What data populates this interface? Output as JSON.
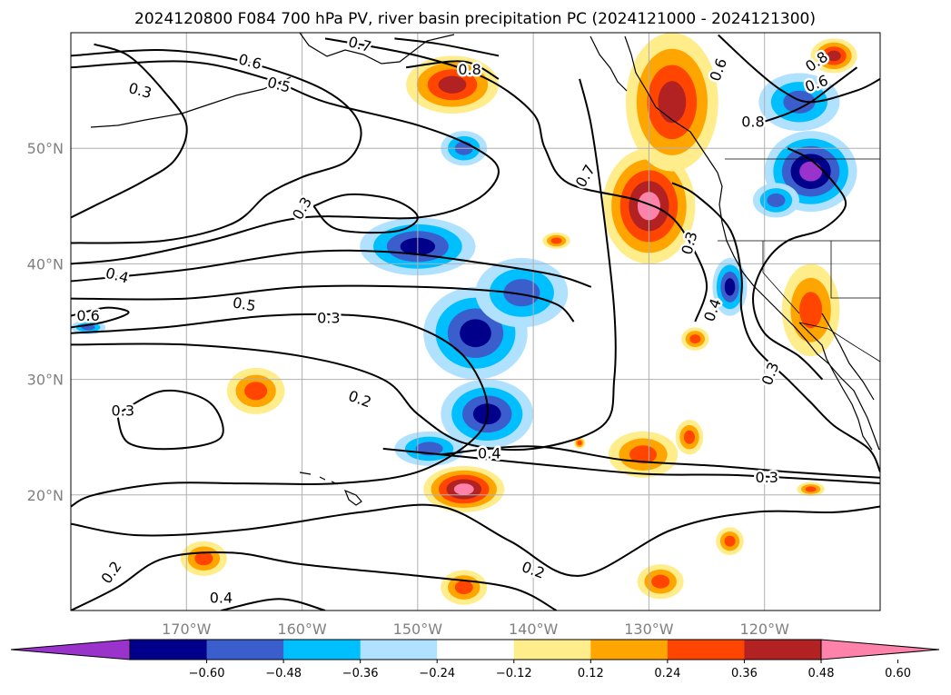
{
  "chart_data": {
    "type": "contour_map",
    "title": "2024120800 F084 700 hPa PV, river basin precipitation PC (2024121000 - 2024121300)",
    "xlim": [
      -180,
      -110
    ],
    "ylim": [
      10,
      60
    ],
    "grid": true,
    "x_ticks": [
      {
        "value": -170,
        "label": "170°W"
      },
      {
        "value": -160,
        "label": "160°W"
      },
      {
        "value": -150,
        "label": "150°W"
      },
      {
        "value": -140,
        "label": "140°W"
      },
      {
        "value": -130,
        "label": "130°W"
      },
      {
        "value": -120,
        "label": "120°W"
      }
    ],
    "y_ticks": [
      {
        "value": 20,
        "label": "20°N"
      },
      {
        "value": 30,
        "label": "30°N"
      },
      {
        "value": 40,
        "label": "40°N"
      },
      {
        "value": 50,
        "label": "50°N"
      }
    ],
    "colorbar": {
      "orientation": "horizontal",
      "extend": "both",
      "levels": [
        -0.72,
        -0.6,
        -0.48,
        -0.36,
        -0.24,
        -0.12,
        0.12,
        0.24,
        0.36,
        0.48,
        0.6,
        0.72
      ],
      "colors": [
        "#9933cc",
        "#00008b",
        "#3a5fcd",
        "#00bfff",
        "#b0e2ff",
        "#ffffff",
        "#ffec8b",
        "#ffa500",
        "#ff4500",
        "#b22222",
        "#ff82ab"
      ],
      "tick_labels": [
        "−0.60",
        "−0.48",
        "−0.36",
        "−0.24",
        "−0.12",
        "0.12",
        "0.24",
        "0.36",
        "0.48",
        "0.60"
      ]
    },
    "shaded_regions": [
      {
        "lon": -147,
        "lat": 55.5,
        "rlon": 4,
        "rlat": 2.5,
        "value": 0.52
      },
      {
        "lon": -150,
        "lat": 41.5,
        "rlon": 5,
        "rlat": 2.5,
        "value": -0.55
      },
      {
        "lon": -146,
        "lat": 50,
        "rlon": 2,
        "rlat": 1.5,
        "value": -0.4
      },
      {
        "lon": -145,
        "lat": 34,
        "rlon": 4.5,
        "rlat": 4,
        "value": -0.5
      },
      {
        "lon": -141,
        "lat": 37.5,
        "rlon": 4,
        "rlat": 3,
        "value": -0.4
      },
      {
        "lon": -144,
        "lat": 27,
        "rlon": 4,
        "rlat": 3,
        "value": -0.5
      },
      {
        "lon": -149,
        "lat": 24,
        "rlon": 3,
        "rlat": 1.5,
        "value": -0.36
      },
      {
        "lon": -130,
        "lat": 45,
        "rlon": 4,
        "rlat": 5,
        "value": 0.6
      },
      {
        "lon": -128,
        "lat": 54,
        "rlon": 4,
        "rlat": 6,
        "value": 0.55
      },
      {
        "lon": -117,
        "lat": 54,
        "rlon": 3.5,
        "rlat": 2.5,
        "value": -0.4
      },
      {
        "lon": -116,
        "lat": 48,
        "rlon": 4,
        "rlat": 3.5,
        "value": -0.6
      },
      {
        "lon": -119,
        "lat": 45.5,
        "rlon": 2,
        "rlat": 1.5,
        "value": -0.4
      },
      {
        "lon": -123,
        "lat": 38,
        "rlon": 1.5,
        "rlat": 2.5,
        "value": -0.5
      },
      {
        "lon": -116,
        "lat": 36,
        "rlon": 2.5,
        "rlat": 4,
        "value": 0.4
      },
      {
        "lon": -130.5,
        "lat": 23.5,
        "rlon": 3,
        "rlat": 2,
        "value": 0.4
      },
      {
        "lon": -126.5,
        "lat": 25,
        "rlon": 1.2,
        "rlat": 1.5,
        "value": 0.4
      },
      {
        "lon": -146,
        "lat": 20.5,
        "rlon": 3.5,
        "rlat": 2,
        "value": 0.6
      },
      {
        "lon": -164,
        "lat": 29,
        "rlon": 2.5,
        "rlat": 2,
        "value": 0.4
      },
      {
        "lon": -168.5,
        "lat": 14.5,
        "rlon": 2,
        "rlat": 1.5,
        "value": 0.4
      },
      {
        "lon": -146,
        "lat": 12,
        "rlon": 2,
        "rlat": 1.5,
        "value": 0.4
      },
      {
        "lon": -129,
        "lat": 12.5,
        "rlon": 2,
        "rlat": 1.5,
        "value": 0.4
      },
      {
        "lon": -123,
        "lat": 16,
        "rlon": 1.2,
        "rlat": 1.2,
        "value": 0.4
      },
      {
        "lon": -126,
        "lat": 33.5,
        "rlon": 1.2,
        "rlat": 1,
        "value": 0.4
      },
      {
        "lon": -116,
        "lat": 20.5,
        "rlon": 1.2,
        "rlat": 0.6,
        "value": 0.4
      },
      {
        "lon": -114,
        "lat": 58,
        "rlon": 2,
        "rlat": 1.5,
        "value": 0.5
      },
      {
        "lon": -178.5,
        "lat": 34.5,
        "rlon": 1.5,
        "rlat": 0.6,
        "value": -0.4
      },
      {
        "lon": -136,
        "lat": 24.5,
        "rlon": 0.5,
        "rlat": 0.5,
        "value": 0.4
      },
      {
        "lon": -138,
        "lat": 42,
        "rlon": 1.2,
        "rlat": 0.7,
        "value": 0.4
      }
    ],
    "contours": [
      {
        "level": "0.6",
        "pts": [
          [
            -180,
            58
          ],
          [
            -172,
            58.5
          ],
          [
            -165,
            57.5
          ],
          [
            -158,
            55
          ],
          [
            -155,
            52
          ],
          [
            -156,
            49
          ],
          [
            -160,
            47.5
          ],
          [
            -163,
            46
          ],
          [
            -166,
            43.5
          ],
          [
            -172,
            42
          ],
          [
            -180,
            41.8
          ]
        ]
      },
      {
        "level": "0.5",
        "pts": [
          [
            -180,
            57
          ],
          [
            -170,
            57.5
          ],
          [
            -163,
            56
          ],
          [
            -158,
            54
          ],
          [
            -150,
            52
          ],
          [
            -145,
            50
          ],
          [
            -143,
            48
          ],
          [
            -145,
            45.5
          ],
          [
            -150,
            44
          ],
          [
            -160,
            44
          ],
          [
            -168,
            42
          ],
          [
            -175,
            40.5
          ],
          [
            -180,
            40
          ]
        ]
      },
      {
        "level": "0.4",
        "pts": [
          [
            -180,
            38.5
          ],
          [
            -170,
            39.5
          ],
          [
            -160,
            41
          ],
          [
            -152,
            41
          ],
          [
            -144,
            40
          ],
          [
            -138,
            39
          ],
          [
            -135,
            38
          ]
        ]
      },
      {
        "level": "0.5",
        "pts": [
          [
            -180,
            37
          ],
          [
            -170,
            37
          ],
          [
            -160,
            38
          ],
          [
            -150,
            38
          ],
          [
            -142,
            37.5
          ],
          [
            -138,
            36.5
          ],
          [
            -136.5,
            35
          ]
        ]
      },
      {
        "level": "0.6",
        "pts": [
          [
            -180,
            35.5
          ],
          [
            -177,
            36.2
          ],
          [
            -175,
            35.8
          ],
          [
            -177,
            35
          ],
          [
            -180,
            34.5
          ]
        ]
      },
      {
        "level": "0.3",
        "pts": [
          [
            -180,
            34
          ],
          [
            -172,
            34.5
          ],
          [
            -163,
            35.5
          ],
          [
            -155,
            35.5
          ],
          [
            -150,
            34.5
          ],
          [
            -146,
            32
          ],
          [
            -144,
            28
          ],
          [
            -145,
            25
          ],
          [
            -150,
            22
          ],
          [
            -157,
            21
          ],
          [
            -165,
            21
          ],
          [
            -172,
            21
          ],
          [
            -178,
            20
          ],
          [
            -180,
            19
          ]
        ]
      },
      {
        "level": "0.3",
        "pts": [
          [
            -178,
            59
          ],
          [
            -175,
            58
          ],
          [
            -172,
            55
          ],
          [
            -170,
            52
          ],
          [
            -171,
            49
          ],
          [
            -174,
            47
          ],
          [
            -178,
            45
          ],
          [
            -180,
            44
          ]
        ]
      },
      {
        "level": "0.3",
        "pts": [
          [
            -159,
            45
          ],
          [
            -156,
            46
          ],
          [
            -152,
            45.5
          ],
          [
            -150,
            44
          ],
          [
            -152,
            42.8
          ],
          [
            -157,
            43
          ],
          [
            -159,
            45
          ]
        ]
      },
      {
        "level": "0.2",
        "pts": [
          [
            -180,
            33
          ],
          [
            -170,
            33
          ],
          [
            -160,
            32
          ],
          [
            -153,
            30
          ],
          [
            -150,
            27
          ],
          [
            -146,
            24.5
          ],
          [
            -140,
            24
          ],
          [
            -134,
            26
          ],
          [
            -133,
            30
          ],
          [
            -133,
            36
          ],
          [
            -134,
            45
          ],
          [
            -135,
            52
          ],
          [
            -136,
            56
          ]
        ]
      },
      {
        "level": "0.4",
        "pts": [
          [
            -148,
            23.5
          ],
          [
            -140,
            24.2
          ],
          [
            -132,
            23
          ],
          [
            -124,
            22.5
          ],
          [
            -118,
            22
          ],
          [
            -110,
            21.5
          ]
        ]
      },
      {
        "level": "0.3",
        "pts": [
          [
            -153,
            24
          ],
          [
            -145,
            23.2
          ],
          [
            -138,
            22.5
          ],
          [
            -130,
            21.8
          ],
          [
            -122,
            21.7
          ],
          [
            -110,
            21
          ]
        ]
      },
      {
        "level": "0.2",
        "pts": [
          [
            -180,
            17.5
          ],
          [
            -174,
            16.5
          ],
          [
            -165,
            17
          ],
          [
            -155,
            18.5
          ],
          [
            -148,
            19
          ],
          [
            -142,
            16
          ],
          [
            -136,
            13
          ],
          [
            -128,
            17
          ],
          [
            -121,
            18.5
          ],
          [
            -114,
            18.5
          ],
          [
            -110,
            19
          ]
        ]
      },
      {
        "level": "0.2",
        "pts": [
          [
            -180,
            10
          ],
          [
            -176,
            12
          ],
          [
            -172,
            14.5
          ],
          [
            -166,
            15
          ],
          [
            -160,
            14
          ],
          [
            -150,
            13
          ],
          [
            -142,
            12
          ],
          [
            -138,
            10
          ]
        ]
      },
      {
        "level": "0.4",
        "pts": [
          [
            -167,
            10
          ],
          [
            -162,
            11
          ],
          [
            -158,
            10
          ]
        ]
      },
      {
        "level": "0.3",
        "pts": [
          [
            -176,
            27
          ],
          [
            -172,
            29
          ],
          [
            -168,
            28
          ],
          [
            -167,
            25
          ],
          [
            -171,
            24
          ],
          [
            -175,
            24.5
          ],
          [
            -176,
            27
          ]
        ]
      },
      {
        "level": "0.7",
        "pts": [
          [
            -158,
            59.5
          ],
          [
            -150,
            58
          ],
          [
            -144,
            56
          ],
          [
            -140,
            53
          ],
          [
            -139,
            50
          ],
          [
            -137,
            47
          ],
          [
            -131,
            45.5
          ],
          [
            -128,
            44
          ],
          [
            -126,
            41
          ],
          [
            -125,
            38
          ],
          [
            -126,
            35
          ]
        ]
      },
      {
        "level": "0.3",
        "pts": [
          [
            -128,
            47
          ],
          [
            -126,
            46
          ],
          [
            -123,
            43
          ],
          [
            -122,
            39
          ],
          [
            -122,
            36
          ],
          [
            -121,
            33
          ],
          [
            -118,
            30
          ],
          [
            -116,
            28
          ],
          [
            -114,
            26
          ],
          [
            -111,
            24
          ],
          [
            -110,
            22
          ]
        ]
      },
      {
        "level": "0.6",
        "pts": [
          [
            -124,
            59.8
          ],
          [
            -121,
            57
          ],
          [
            -118.5,
            55
          ],
          [
            -116,
            54
          ],
          [
            -112,
            55
          ],
          [
            -110,
            56
          ]
        ]
      },
      {
        "level": "0.8",
        "pts": [
          [
            -121,
            52
          ],
          [
            -118,
            53
          ],
          [
            -116,
            54
          ],
          [
            -114,
            55.5
          ],
          [
            -112,
            57
          ]
        ]
      },
      {
        "level": "0.8",
        "pts": [
          [
            -151,
            57
          ],
          [
            -146,
            57.5
          ],
          [
            -143,
            56
          ]
        ]
      },
      {
        "level": "0.7",
        "pts": [
          [
            -152,
            59.5
          ],
          [
            -148,
            59
          ],
          [
            -143,
            58
          ]
        ]
      },
      {
        "level": "0.4",
        "pts": [
          [
            -118,
            50
          ],
          [
            -116,
            49
          ],
          [
            -114,
            47
          ],
          [
            -113,
            45
          ],
          [
            -115,
            43
          ],
          [
            -118,
            42
          ],
          [
            -120,
            40
          ],
          [
            -121,
            37
          ],
          [
            -120,
            34
          ],
          [
            -117,
            32
          ],
          [
            -115,
            30
          ]
        ]
      }
    ],
    "contour_labels": [
      {
        "text": "0.6",
        "lon": -164.5,
        "lat": 57.5,
        "angle": 15
      },
      {
        "text": "0.5",
        "lon": -162,
        "lat": 55.5,
        "angle": 15
      },
      {
        "text": "0.3",
        "lon": -174,
        "lat": 55,
        "angle": 15
      },
      {
        "text": "0.7",
        "lon": -155,
        "lat": 59,
        "angle": 15
      },
      {
        "text": "0.8",
        "lon": -145.5,
        "lat": 56.8,
        "angle": 0
      },
      {
        "text": "0.3",
        "lon": -160,
        "lat": 44.8,
        "angle": -60
      },
      {
        "text": "0.7",
        "lon": -135.5,
        "lat": 47.6,
        "angle": -60
      },
      {
        "text": "0.4",
        "lon": -176,
        "lat": 39,
        "angle": 15
      },
      {
        "text": "0.5",
        "lon": -165,
        "lat": 36.5,
        "angle": 10
      },
      {
        "text": "0.6",
        "lon": -178.5,
        "lat": 35.5,
        "angle": 0
      },
      {
        "text": "0.3",
        "lon": -157.7,
        "lat": 35.3,
        "angle": 0
      },
      {
        "text": "0.3",
        "lon": -175.5,
        "lat": 27.3,
        "angle": 0
      },
      {
        "text": "0.2",
        "lon": -155,
        "lat": 28.3,
        "angle": 20
      },
      {
        "text": "0.4",
        "lon": -143.8,
        "lat": 23.6,
        "angle": 0
      },
      {
        "text": "0.3",
        "lon": -119.8,
        "lat": 21.5,
        "angle": 0
      },
      {
        "text": "0.2",
        "lon": -176.5,
        "lat": 13.3,
        "angle": -55
      },
      {
        "text": "0.4",
        "lon": -167,
        "lat": 11.1,
        "angle": 0
      },
      {
        "text": "0.2",
        "lon": -140,
        "lat": 13.5,
        "angle": 20
      },
      {
        "text": "0.3",
        "lon": -126.5,
        "lat": 41.8,
        "angle": -75
      },
      {
        "text": "0.6",
        "lon": -124,
        "lat": 56.8,
        "angle": -70
      },
      {
        "text": "0.8",
        "lon": -115.5,
        "lat": 57.5,
        "angle": -35
      },
      {
        "text": "0.8",
        "lon": -121,
        "lat": 52.3,
        "angle": 0
      },
      {
        "text": "0.6",
        "lon": -115.5,
        "lat": 55.6,
        "angle": -20
      },
      {
        "text": "0.3",
        "lon": -119.5,
        "lat": 30.5,
        "angle": -70
      },
      {
        "text": "0.4",
        "lon": -124.5,
        "lat": 36,
        "angle": -70
      }
    ]
  }
}
